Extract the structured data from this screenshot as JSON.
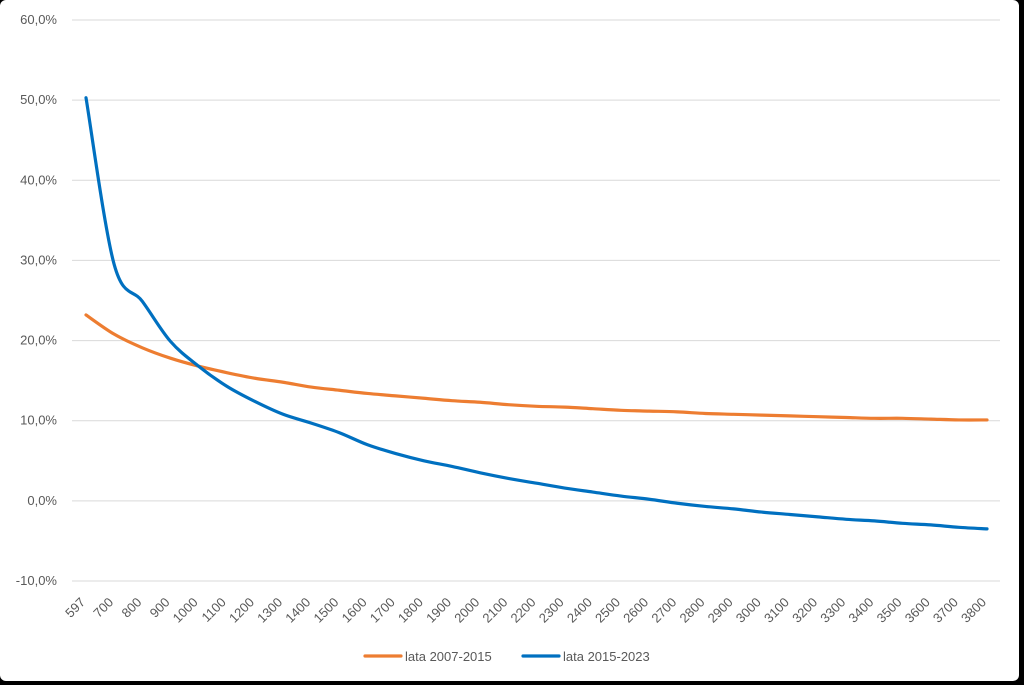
{
  "chart_data": {
    "type": "line",
    "title": "",
    "xlabel": "",
    "ylabel": "",
    "ylim": [
      -10,
      60
    ],
    "y_ticks": [
      "60,0%",
      "50,0%",
      "40,0%",
      "30,0%",
      "20,0%",
      "10,0%",
      "0,0%",
      "-10,0%"
    ],
    "y_tick_values": [
      60,
      50,
      40,
      30,
      20,
      10,
      0,
      -10
    ],
    "categories": [
      "597",
      "700",
      "800",
      "900",
      "1000",
      "1100",
      "1200",
      "1300",
      "1400",
      "1500",
      "1600",
      "1700",
      "1800",
      "1900",
      "2000",
      "2100",
      "2200",
      "2300",
      "2400",
      "2500",
      "2600",
      "2700",
      "2800",
      "2900",
      "3000",
      "3100",
      "3200",
      "3300",
      "3400",
      "3500",
      "3600",
      "3700",
      "3800"
    ],
    "grid": true,
    "legend_position": "bottom",
    "series": [
      {
        "name": "lata 2007-2015",
        "color": "#ED7D31",
        "values": [
          23.2,
          20.8,
          19.1,
          17.8,
          16.8,
          16.0,
          15.3,
          14.8,
          14.2,
          13.8,
          13.4,
          13.1,
          12.8,
          12.5,
          12.3,
          12.0,
          11.8,
          11.7,
          11.5,
          11.3,
          11.2,
          11.1,
          10.9,
          10.8,
          10.7,
          10.6,
          10.5,
          10.4,
          10.3,
          10.3,
          10.2,
          10.1,
          10.1
        ]
      },
      {
        "name": "lata 2015-2023",
        "color": "#0070C0",
        "values": [
          50.3,
          29.5,
          24.9,
          19.9,
          16.8,
          14.3,
          12.4,
          10.8,
          9.7,
          8.5,
          7.0,
          5.9,
          5.0,
          4.3,
          3.5,
          2.8,
          2.2,
          1.6,
          1.1,
          0.6,
          0.2,
          -0.3,
          -0.7,
          -1.0,
          -1.4,
          -1.7,
          -2.0,
          -2.3,
          -2.5,
          -2.8,
          -3.0,
          -3.3,
          -3.5
        ]
      }
    ]
  }
}
